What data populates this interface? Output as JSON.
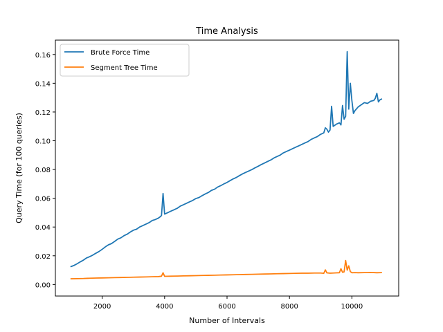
{
  "chart_data": {
    "type": "line",
    "title": "Time Analysis",
    "xlabel": "Number of Intervals",
    "ylabel": "Query Time (for 100 queries)",
    "xlim": [
      500,
      11500
    ],
    "ylim": [
      -0.008,
      0.17
    ],
    "xticks": [
      2000,
      4000,
      6000,
      8000,
      10000
    ],
    "yticks": [
      0.0,
      0.02,
      0.04,
      0.06,
      0.08,
      0.1,
      0.12,
      0.14,
      0.16
    ],
    "xtick_labels": [
      "2000",
      "4000",
      "6000",
      "8000",
      "10000"
    ],
    "ytick_labels": [
      "0.00",
      "0.02",
      "0.04",
      "0.06",
      "0.08",
      "0.10",
      "0.12",
      "0.14",
      "0.16"
    ],
    "grid": false,
    "legend_position": "upper-left",
    "series": [
      {
        "name": "Brute Force Time",
        "color": "#1f77b4",
        "x": [
          1000,
          1100,
          1200,
          1300,
          1400,
          1500,
          1600,
          1700,
          1800,
          1900,
          2000,
          2100,
          2200,
          2300,
          2400,
          2500,
          2600,
          2700,
          2800,
          2900,
          3000,
          3100,
          3200,
          3300,
          3400,
          3500,
          3600,
          3700,
          3800,
          3850,
          3900,
          3950,
          4000,
          4100,
          4200,
          4300,
          4400,
          4500,
          4600,
          4700,
          4800,
          4900,
          5000,
          5100,
          5200,
          5300,
          5400,
          5500,
          5600,
          5700,
          5800,
          5900,
          6000,
          6100,
          6200,
          6300,
          6400,
          6500,
          6600,
          6700,
          6800,
          6900,
          7000,
          7100,
          7200,
          7300,
          7400,
          7500,
          7600,
          7700,
          7800,
          7900,
          8000,
          8100,
          8200,
          8300,
          8400,
          8500,
          8600,
          8700,
          8800,
          8900,
          9000,
          9100,
          9150,
          9200,
          9250,
          9300,
          9350,
          9400,
          9500,
          9600,
          9650,
          9700,
          9750,
          9800,
          9850,
          9900,
          9950,
          10000,
          10050,
          10100,
          10200,
          10300,
          10400,
          10500,
          10600,
          10700,
          10750,
          10800,
          10850,
          10900,
          10950
        ],
        "values": [
          0.0125,
          0.0133,
          0.0145,
          0.0158,
          0.017,
          0.0185,
          0.0194,
          0.0205,
          0.0218,
          0.023,
          0.0245,
          0.0262,
          0.0276,
          0.0285,
          0.03,
          0.0316,
          0.0325,
          0.034,
          0.035,
          0.0365,
          0.0378,
          0.0385,
          0.04,
          0.041,
          0.042,
          0.043,
          0.0445,
          0.0452,
          0.0462,
          0.047,
          0.048,
          0.0633,
          0.049,
          0.05,
          0.051,
          0.052,
          0.053,
          0.0545,
          0.0555,
          0.0565,
          0.0575,
          0.0585,
          0.0598,
          0.0605,
          0.0618,
          0.063,
          0.064,
          0.0655,
          0.0663,
          0.0678,
          0.0688,
          0.07,
          0.071,
          0.0723,
          0.0735,
          0.0745,
          0.0758,
          0.077,
          0.078,
          0.079,
          0.08,
          0.0812,
          0.0823,
          0.0835,
          0.0845,
          0.0856,
          0.0866,
          0.088,
          0.089,
          0.09,
          0.0915,
          0.0925,
          0.0935,
          0.0945,
          0.0955,
          0.0965,
          0.0975,
          0.0985,
          0.0995,
          0.101,
          0.102,
          0.103,
          0.1045,
          0.1055,
          0.109,
          0.108,
          0.106,
          0.1075,
          0.124,
          0.11,
          0.1115,
          0.1125,
          0.111,
          0.1245,
          0.115,
          0.117,
          0.162,
          0.122,
          0.14,
          0.128,
          0.119,
          0.121,
          0.1235,
          0.125,
          0.1265,
          0.126,
          0.1275,
          0.128,
          0.1295,
          0.133,
          0.127,
          0.1285,
          0.129
        ]
      },
      {
        "name": "Segment Tree Time",
        "color": "#ff7f0e",
        "x": [
          1000,
          1200,
          1400,
          1600,
          1800,
          2000,
          2200,
          2400,
          2600,
          2800,
          3000,
          3200,
          3400,
          3600,
          3800,
          3900,
          3950,
          4000,
          4200,
          4400,
          4600,
          4800,
          5000,
          5200,
          5400,
          5600,
          5800,
          6000,
          6200,
          6400,
          6600,
          6800,
          7000,
          7200,
          7400,
          7600,
          7800,
          8000,
          8200,
          8400,
          8600,
          8800,
          9000,
          9100,
          9150,
          9200,
          9300,
          9400,
          9500,
          9600,
          9650,
          9700,
          9750,
          9800,
          9850,
          9900,
          9950,
          10000,
          10100,
          10200,
          10400,
          10600,
          10800,
          10950
        ],
        "values": [
          0.004,
          0.0041,
          0.0042,
          0.0044,
          0.0045,
          0.0046,
          0.0047,
          0.0048,
          0.0049,
          0.005,
          0.0051,
          0.0052,
          0.0053,
          0.0054,
          0.0055,
          0.0058,
          0.0082,
          0.0057,
          0.0058,
          0.0059,
          0.006,
          0.0061,
          0.0062,
          0.0063,
          0.0064,
          0.0065,
          0.0066,
          0.0067,
          0.0068,
          0.0069,
          0.007,
          0.0071,
          0.0072,
          0.0073,
          0.0074,
          0.0075,
          0.0076,
          0.0077,
          0.0078,
          0.0079,
          0.0079,
          0.008,
          0.008,
          0.0078,
          0.0102,
          0.0081,
          0.0079,
          0.008,
          0.0081,
          0.0082,
          0.011,
          0.0085,
          0.0088,
          0.0167,
          0.01,
          0.013,
          0.009,
          0.0082,
          0.0083,
          0.0082,
          0.0083,
          0.0084,
          0.0082,
          0.0083
        ]
      }
    ]
  }
}
